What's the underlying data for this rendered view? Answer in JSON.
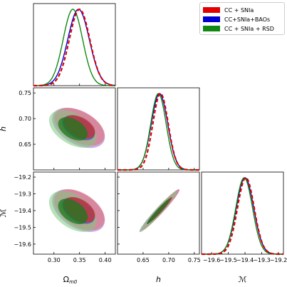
{
  "colors": {
    "cc_snia": "#e00000",
    "cc_snia_baos": "#0000d0",
    "cc_snia_rsd": "#118811"
  },
  "chart_data": {
    "type": "corner",
    "parameters": [
      {
        "key": "om",
        "label": "Ω",
        "label_sub": "m0",
        "range": [
          0.26,
          0.42
        ],
        "ticks": [
          0.3,
          0.35,
          0.4
        ],
        "tick_labels": [
          "0.30",
          "0.35",
          "0.40"
        ]
      },
      {
        "key": "h",
        "label": "h",
        "label_sub": "",
        "range": [
          0.6,
          0.76
        ],
        "ticks": [
          0.65,
          0.7,
          0.75
        ],
        "tick_labels": [
          "0.65",
          "0.70",
          "0.75"
        ]
      },
      {
        "key": "M",
        "label": "ℳ",
        "label_sub": "",
        "range": [
          -19.66,
          -19.17
        ],
        "ticks": [
          -19.6,
          -19.5,
          -19.4,
          -19.3,
          -19.2
        ],
        "tick_labels": [
          "−19.6",
          "−19.5",
          "−19.4",
          "−19.3",
          "−19.2"
        ]
      }
    ],
    "series": [
      {
        "name": "CC + SNIa",
        "color": "#e00000",
        "style": "dashed",
        "mean": {
          "om": 0.35,
          "h": 0.684,
          "M": -19.395
        },
        "sigma": {
          "om": 0.02,
          "h": 0.015,
          "M": 0.05
        },
        "corr": {
          "om_h": -0.45,
          "om_M": -0.45,
          "h_M": 0.97
        }
      },
      {
        "name": "CC+SNIa+BAOs",
        "color": "#0000d0",
        "style": "solid",
        "mean": {
          "om": 0.348,
          "h": 0.682,
          "M": -19.4
        },
        "sigma": {
          "om": 0.021,
          "h": 0.016,
          "M": 0.052
        },
        "corr": {
          "om_h": -0.45,
          "om_M": -0.45,
          "h_M": 0.97
        }
      },
      {
        "name": "CC + SNIa + RSD",
        "color": "#118811",
        "style": "solid",
        "mean": {
          "om": 0.337,
          "h": 0.68,
          "M": -19.405
        },
        "sigma": {
          "om": 0.019,
          "h": 0.015,
          "M": 0.05
        },
        "corr": {
          "om_h": -0.45,
          "om_M": -0.45,
          "h_M": 0.97
        }
      }
    ],
    "legend_position": "top-right",
    "grid": false
  }
}
